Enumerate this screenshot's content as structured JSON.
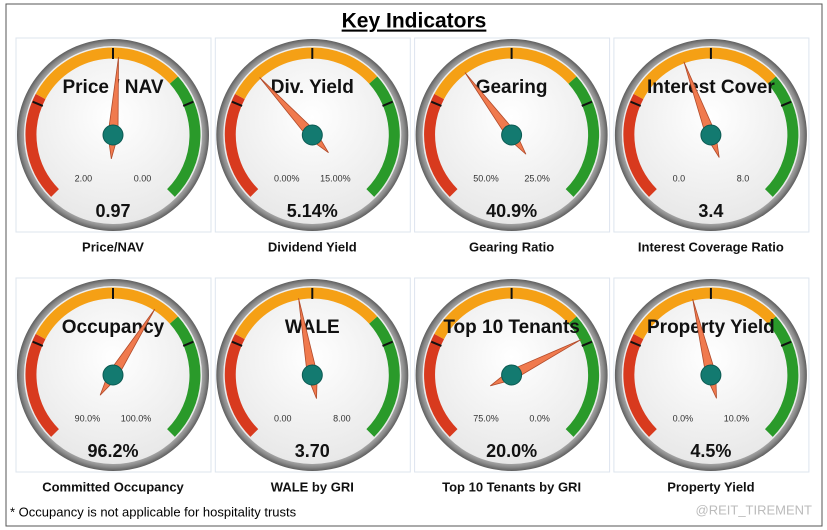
{
  "title": "Key Indicators",
  "footnote": "* Occupancy is not applicable for hospitality trusts",
  "watermark": "@REIT_TIREMENT",
  "chart_data": [
    {
      "type": "gauge",
      "title": "Price / NAV",
      "caption": "Price/NAV",
      "values": [
        0.97
      ],
      "ylim": [
        2,
        0
      ],
      "yticks": [
        {
          "value": 2,
          "label": "2.00"
        },
        {
          "value": 0,
          "label": "0.00"
        }
      ]
    },
    {
      "type": "gauge",
      "title": "Div. Yield",
      "caption": "Dividend Yield",
      "values": [
        5.14
      ],
      "value_labels": [
        "5.14%"
      ],
      "ylim": [
        0,
        15
      ],
      "yticks": [
        {
          "value": 0,
          "label": "0.00%"
        },
        {
          "value": 15,
          "label": "15.00%"
        }
      ]
    },
    {
      "type": "gauge",
      "title": "Gearing",
      "caption": "Gearing Ratio",
      "values": [
        40.9
      ],
      "value_labels": [
        "40.9%"
      ],
      "ylim": [
        50,
        25
      ],
      "yticks": [
        {
          "value": 50,
          "label": "50.0%"
        },
        {
          "value": 25,
          "label": "25.0%"
        }
      ]
    },
    {
      "type": "gauge",
      "title": "Interest Cover",
      "caption": "Interest Coverage Ratio",
      "values": [
        3.4
      ],
      "ylim": [
        0,
        8
      ],
      "yticks": [
        {
          "value": 0,
          "label": "0.0"
        },
        {
          "value": 8,
          "label": "8.0"
        }
      ]
    },
    {
      "type": "gauge",
      "title": "Occupancy",
      "caption": "Committed Occupancy",
      "values": [
        96.2
      ],
      "value_labels": [
        "96.2%"
      ],
      "ylim": [
        90,
        100
      ],
      "yticks": [
        {
          "value": 90,
          "label": "90.0%"
        },
        {
          "value": 100,
          "label": "100.0%"
        }
      ]
    },
    {
      "type": "gauge",
      "title": "WALE",
      "caption": "WALE by GRI",
      "values": [
        3.7
      ],
      "value_labels": [
        "3.70"
      ],
      "ylim": [
        0,
        8
      ],
      "yticks": [
        {
          "value": 0,
          "label": "0.00"
        },
        {
          "value": 8,
          "label": "8.00"
        }
      ]
    },
    {
      "type": "gauge",
      "title": "Top 10 Tenants",
      "caption": "Top 10 Tenants by GRI",
      "values": [
        20.0
      ],
      "value_labels": [
        "20.0%"
      ],
      "ylim": [
        75,
        0
      ],
      "yticks": [
        {
          "value": 75,
          "label": "75.0%"
        },
        {
          "value": 0,
          "label": "0.0%"
        }
      ]
    },
    {
      "type": "gauge",
      "title": "Property Yield",
      "caption": "Property Yield",
      "values": [
        4.5
      ],
      "value_labels": [
        "4.5%"
      ],
      "ylim": [
        0,
        10
      ],
      "yticks": [
        {
          "value": 0,
          "label": "0.0%"
        },
        {
          "value": 10,
          "label": "10.0%"
        }
      ]
    }
  ]
}
